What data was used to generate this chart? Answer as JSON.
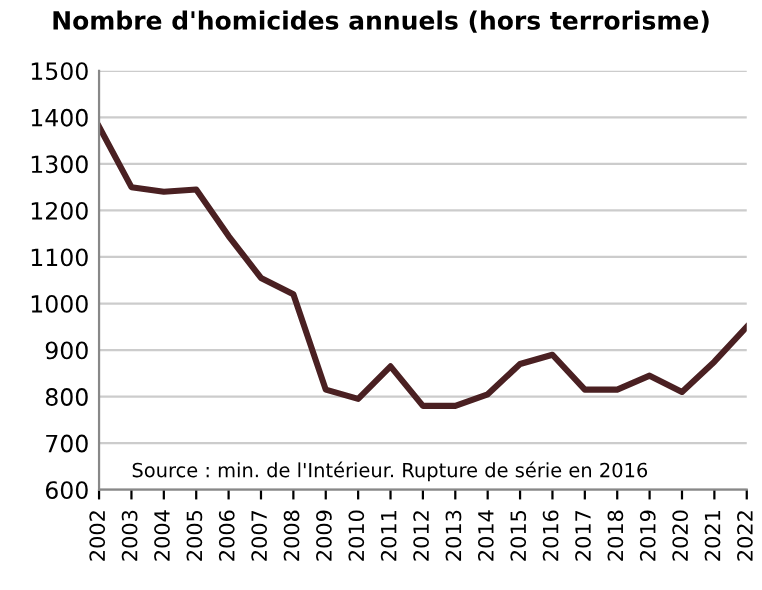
{
  "chart_data": {
    "type": "line",
    "title": "Nombre d'homicides annuels (hors terrorisme)",
    "categories": [
      "2002",
      "2003",
      "2004",
      "2005",
      "2006",
      "2007",
      "2008",
      "2009",
      "2010",
      "2011",
      "2012",
      "2013",
      "2014",
      "2015",
      "2016",
      "2017",
      "2018",
      "2019",
      "2020",
      "2021",
      "2022"
    ],
    "series": [
      {
        "color": "#4a2022",
        "values": [
          1380,
          1250,
          1240,
          1245,
          1145,
          1055,
          1020,
          815,
          795,
          865,
          780,
          780,
          805,
          870,
          890,
          815,
          815,
          845,
          810,
          875,
          950
        ]
      }
    ],
    "ylim": [
      600,
      1500
    ],
    "yticks": [
      600,
      700,
      800,
      900,
      1000,
      1100,
      1200,
      1300,
      1400,
      1500
    ],
    "grid": "y",
    "marker": "none",
    "line_style": "solid",
    "legend": false,
    "annotations": [
      "Source : min. de l'Intérieur. Rupture de série en 2016"
    ]
  }
}
